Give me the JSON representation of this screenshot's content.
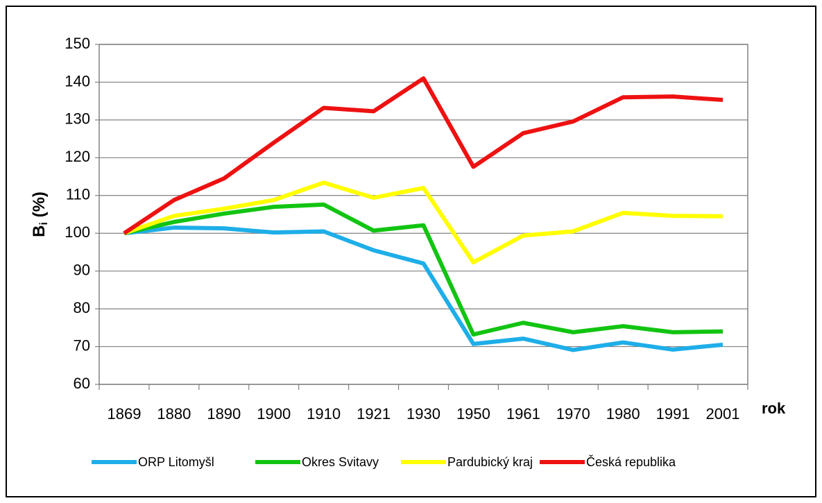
{
  "chart_data": {
    "type": "line",
    "y_label_parts": [
      "B",
      "i",
      " (%)"
    ],
    "x_label": "rok",
    "categories": [
      "1869",
      "1880",
      "1890",
      "1900",
      "1910",
      "1921",
      "1930",
      "1950",
      "1961",
      "1970",
      "1980",
      "1991",
      "2001"
    ],
    "series": [
      {
        "name": "ORP Litomyšl",
        "color": "#1eaee8",
        "values": [
          100,
          101.5,
          101.3,
          100.2,
          100.5,
          95.5,
          92,
          70.7,
          72.1,
          69.1,
          71.1,
          69.2,
          70.5
        ]
      },
      {
        "name": "Okres Svitavy",
        "color": "#12c412",
        "values": [
          100,
          103,
          105.2,
          107,
          107.6,
          100.7,
          102.1,
          73.2,
          76.3,
          73.8,
          75.4,
          73.8,
          74
        ]
      },
      {
        "name": "Pardubický kraj",
        "color": "#ffff00",
        "values": [
          100,
          104.6,
          106.5,
          108.8,
          113.4,
          109.4,
          112,
          92.3,
          99.4,
          100.5,
          105.4,
          104.6,
          104.5
        ]
      },
      {
        "name": "Česká republika",
        "color": "#ee1111",
        "values": [
          100,
          108.8,
          114.5,
          124,
          133.2,
          132.3,
          141,
          117.6,
          126.5,
          129.6,
          136,
          136.2,
          135.3
        ]
      }
    ],
    "ylim": [
      60,
      150
    ],
    "yticks": [
      60,
      70,
      80,
      90,
      100,
      110,
      120,
      130,
      140,
      150
    ],
    "grid": true,
    "legend": "bottom"
  }
}
